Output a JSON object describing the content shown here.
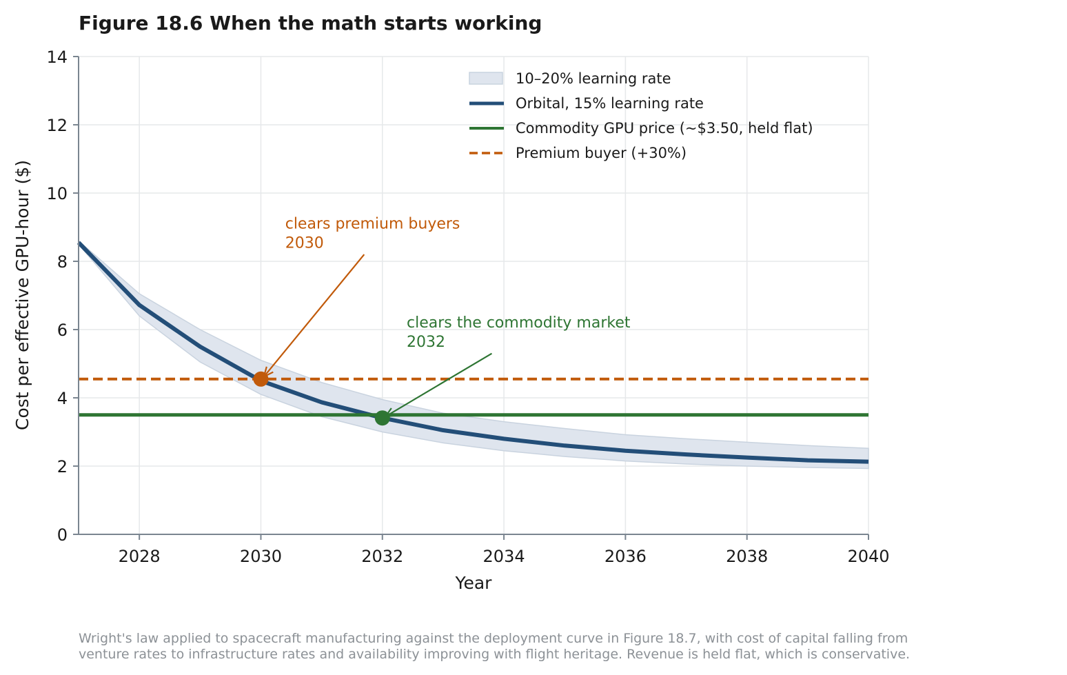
{
  "chart_data": {
    "type": "line",
    "title": "Figure 18.6  When the math starts working",
    "xlabel": "Year",
    "ylabel": "Cost per effective GPU-hour ($)",
    "xlim": [
      2027,
      2040
    ],
    "ylim": [
      0,
      14
    ],
    "xticks": [
      2028,
      2030,
      2032,
      2034,
      2036,
      2038,
      2040
    ],
    "yticks": [
      0,
      2,
      4,
      6,
      8,
      10,
      12,
      14
    ],
    "grid": true,
    "legend_position": "top-right",
    "x": [
      2027,
      2028,
      2029,
      2030,
      2031,
      2032,
      2033,
      2034,
      2035,
      2036,
      2037,
      2038,
      2039,
      2040
    ],
    "band": {
      "name": "10–20% learning rate",
      "color": "#dfe5ee",
      "edge_color": "#c9d3df",
      "lower": [
        8.5,
        6.4,
        5.05,
        4.1,
        3.45,
        3.0,
        2.68,
        2.45,
        2.28,
        2.15,
        2.06,
        2.0,
        1.96,
        1.93
      ],
      "upper": [
        8.6,
        7.05,
        6.0,
        5.1,
        4.45,
        3.95,
        3.55,
        3.3,
        3.1,
        2.92,
        2.8,
        2.7,
        2.6,
        2.52
      ]
    },
    "series": [
      {
        "name": "Orbital, 15% learning rate",
        "color": "#234e78",
        "style": "solid",
        "values": [
          8.55,
          6.72,
          5.5,
          4.5,
          3.87,
          3.41,
          3.05,
          2.8,
          2.6,
          2.45,
          2.34,
          2.25,
          2.17,
          2.13
        ]
      },
      {
        "name": "Commodity GPU price (~$3.50, held flat)",
        "color": "#2e7533",
        "style": "solid",
        "constant": 3.5
      },
      {
        "name": "Premium buyer (+30%)",
        "color": "#c15a0a",
        "style": "dashed",
        "constant": 4.55
      }
    ],
    "markers": [
      {
        "x": 2030,
        "y": 4.55,
        "color": "#c15a0a"
      },
      {
        "x": 2032,
        "y": 3.41,
        "color": "#2e7533"
      }
    ],
    "annotations": [
      {
        "lines": [
          "clears premium buyers",
          "2030"
        ],
        "color": "#c15a0a",
        "text_x": 2030.4,
        "text_y": 9.1,
        "arrow_from": [
          2031.7,
          8.2
        ],
        "arrow_to": [
          2030.05,
          4.62
        ]
      },
      {
        "lines": [
          "clears the commodity market",
          "2032"
        ],
        "color": "#2e7533",
        "text_x": 2032.4,
        "text_y": 6.2,
        "arrow_from": [
          2033.8,
          5.3
        ],
        "arrow_to": [
          2032.05,
          3.45
        ]
      }
    ],
    "caption_lines": [
      "Wright's law applied to spacecraft manufacturing against the deployment curve in Figure 18.7, with cost of capital falling from",
      "venture rates to infrastructure rates and availability improving with flight heritage. Revenue is held flat, which is conservative."
    ]
  }
}
